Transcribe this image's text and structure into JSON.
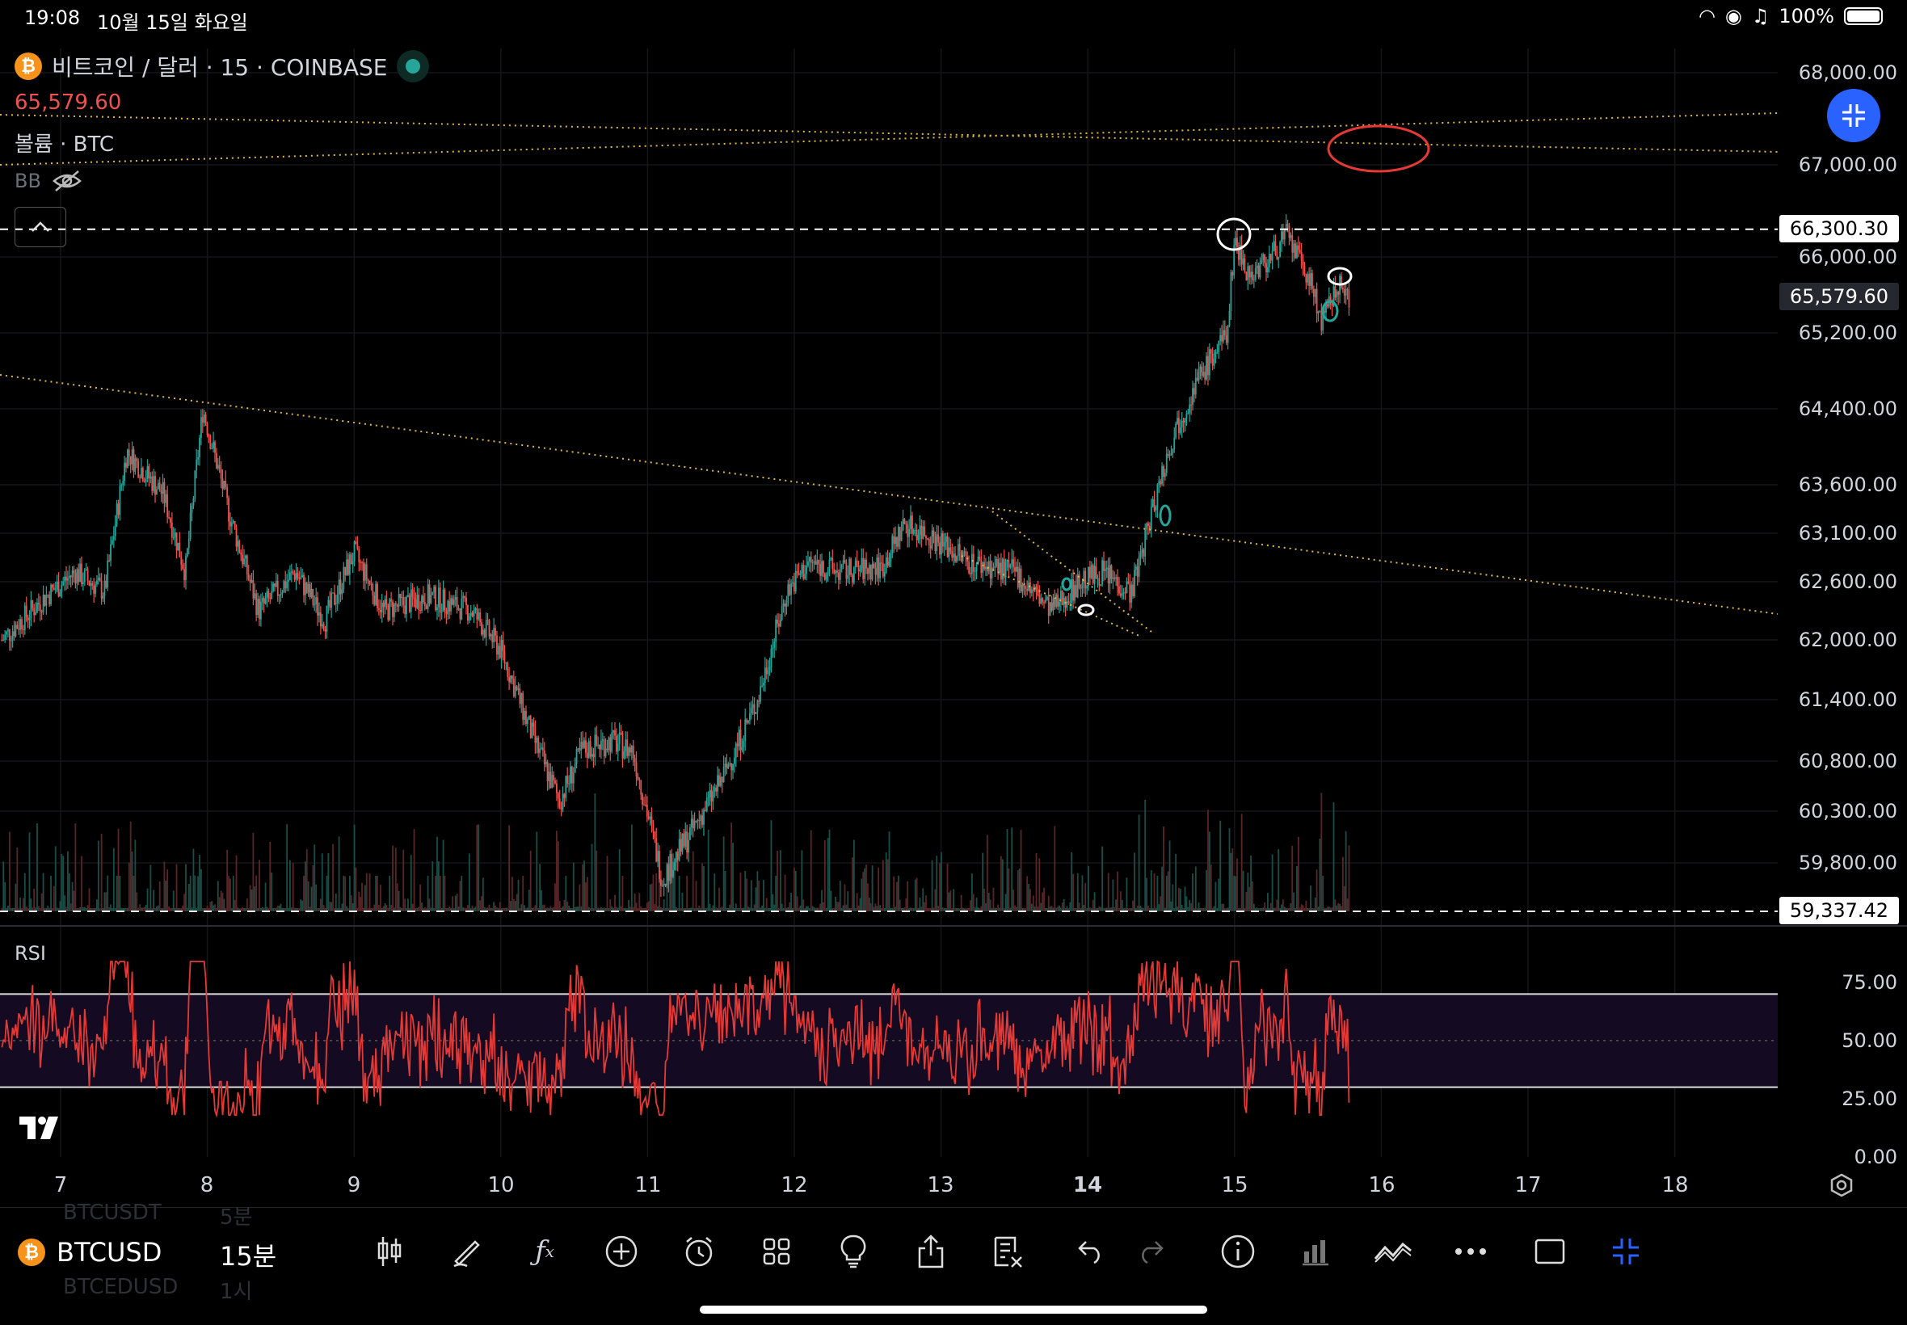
{
  "status_bar": {
    "time": "19:08",
    "date": "10월 15일 화요일",
    "battery": "100%"
  },
  "legend": {
    "symbol_title": "비트코인 / 달러 · 15 · COINBASE",
    "last_price": "65,579.60",
    "volume_label": "볼륨 · BTC",
    "bb_label": "BB"
  },
  "price_axis": [
    "68,000.00",
    "67,000.00",
    "66,000.00",
    "65,200.00",
    "64,400.00",
    "63,600.00",
    "63,100.00",
    "62,600.00",
    "62,000.00",
    "61,400.00",
    "60,800.00",
    "60,300.00",
    "59,800.00"
  ],
  "price_tags": {
    "high": "66,300.30",
    "current": "65,579.60",
    "low": "59,337.42"
  },
  "rsi": {
    "label": "RSI",
    "axis": [
      "75.00",
      "50.00",
      "25.00",
      "0.00"
    ]
  },
  "time_axis": [
    "7",
    "8",
    "9",
    "10",
    "11",
    "12",
    "13",
    "14",
    "15",
    "16",
    "17",
    "18"
  ],
  "bottom_bar": {
    "symbol": "BTCUSD",
    "interval": "15분",
    "ghost_above": {
      "symbol": "BTCUSDT",
      "interval": "5분"
    },
    "ghost_below": {
      "symbol": "BTCEDUSD",
      "interval": "1시"
    }
  },
  "toolbar_icons": [
    "candles-icon",
    "pen-icon",
    "fx-icon",
    "plus-circle-icon",
    "alarm-icon",
    "grid-icon",
    "bulb-icon",
    "share-icon",
    "notes-icon",
    "undo-icon",
    "redo-icon",
    "info-icon",
    "bars-icon",
    "trend-icon",
    "more-icon",
    "square-icon",
    "collapse-icon"
  ],
  "colors": {
    "up": "#26a69a",
    "down": "#ef5350",
    "rsi_line": "#e53935",
    "accent": "#2962ff",
    "trendline": "#e0b840"
  },
  "chart_data": {
    "type": "candlestick",
    "title": "비트코인 / 달러 · 15 · COINBASE",
    "x_ticks": [
      "7",
      "8",
      "9",
      "10",
      "11",
      "12",
      "13",
      "14",
      "15",
      "16",
      "17",
      "18"
    ],
    "ylim": [
      59337.42,
      68000
    ],
    "waypoints": [
      {
        "day": 6.6,
        "price": 62000
      },
      {
        "day": 6.9,
        "price": 62450
      },
      {
        "day": 7.1,
        "price": 62700
      },
      {
        "day": 7.3,
        "price": 62500
      },
      {
        "day": 7.45,
        "price": 63950
      },
      {
        "day": 7.7,
        "price": 63500
      },
      {
        "day": 7.85,
        "price": 62700
      },
      {
        "day": 7.97,
        "price": 64400
      },
      {
        "day": 8.15,
        "price": 63300
      },
      {
        "day": 8.35,
        "price": 62300
      },
      {
        "day": 8.6,
        "price": 62700
      },
      {
        "day": 8.8,
        "price": 62200
      },
      {
        "day": 9.0,
        "price": 62900
      },
      {
        "day": 9.2,
        "price": 62300
      },
      {
        "day": 9.5,
        "price": 62450
      },
      {
        "day": 9.8,
        "price": 62300
      },
      {
        "day": 10.0,
        "price": 61900
      },
      {
        "day": 10.2,
        "price": 61100
      },
      {
        "day": 10.4,
        "price": 60400
      },
      {
        "day": 10.55,
        "price": 60900
      },
      {
        "day": 10.75,
        "price": 61000
      },
      {
        "day": 10.9,
        "price": 60900
      },
      {
        "day": 11.1,
        "price": 59650
      },
      {
        "day": 11.3,
        "price": 60100
      },
      {
        "day": 11.5,
        "price": 60600
      },
      {
        "day": 11.75,
        "price": 61400
      },
      {
        "day": 11.95,
        "price": 62500
      },
      {
        "day": 12.1,
        "price": 62800
      },
      {
        "day": 12.3,
        "price": 62700
      },
      {
        "day": 12.6,
        "price": 62750
      },
      {
        "day": 12.75,
        "price": 63200
      },
      {
        "day": 12.9,
        "price": 63100
      },
      {
        "day": 13.2,
        "price": 62800
      },
      {
        "day": 13.5,
        "price": 62700
      },
      {
        "day": 13.75,
        "price": 62300
      },
      {
        "day": 13.95,
        "price": 62600
      },
      {
        "day": 14.1,
        "price": 62700
      },
      {
        "day": 14.3,
        "price": 62500
      },
      {
        "day": 14.5,
        "price": 63700
      },
      {
        "day": 14.6,
        "price": 64200
      },
      {
        "day": 14.75,
        "price": 64700
      },
      {
        "day": 14.95,
        "price": 65200
      },
      {
        "day": 15.0,
        "price": 66200
      },
      {
        "day": 15.1,
        "price": 65800
      },
      {
        "day": 15.25,
        "price": 66000
      },
      {
        "day": 15.35,
        "price": 66250
      },
      {
        "day": 15.5,
        "price": 65800
      },
      {
        "day": 15.6,
        "price": 65300
      },
      {
        "day": 15.7,
        "price": 65700
      },
      {
        "day": 15.78,
        "price": 65579.6
      }
    ],
    "rsi_ylim": [
      0,
      100
    ],
    "rsi_band": [
      30,
      70
    ]
  }
}
